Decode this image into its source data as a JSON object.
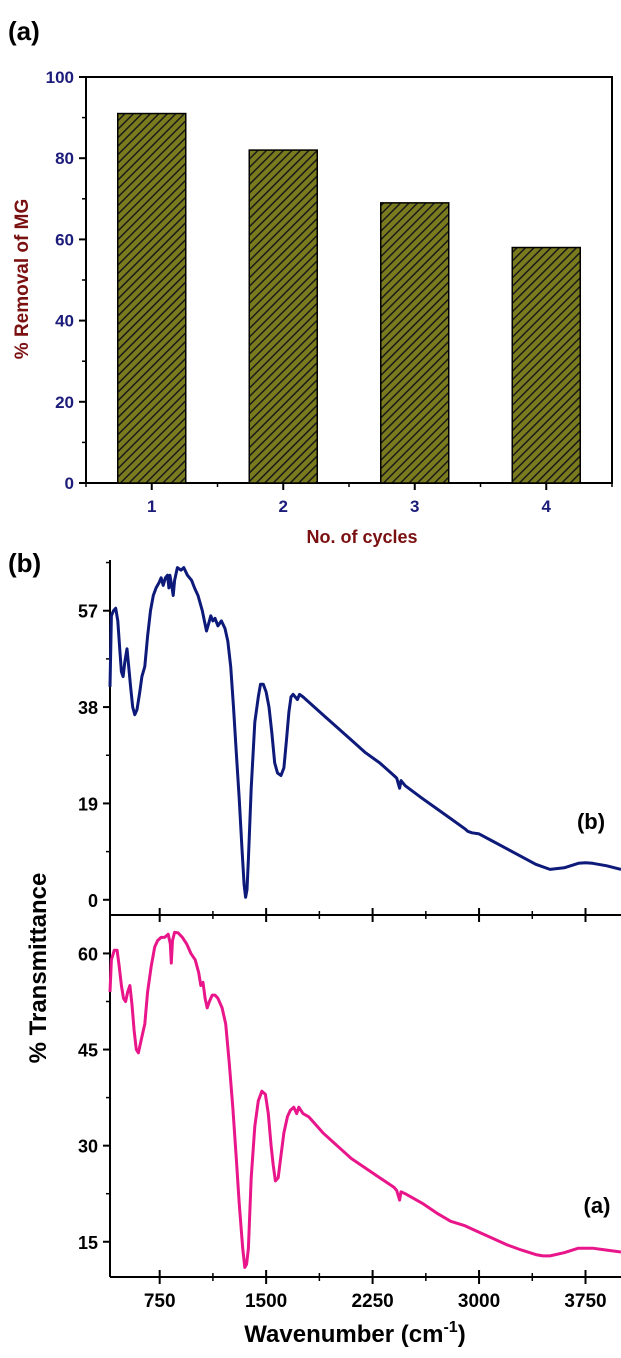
{
  "chart_data": [
    {
      "type": "bar",
      "panel_label": "(a)",
      "categories": [
        "1",
        "2",
        "3",
        "4"
      ],
      "values": [
        91,
        82,
        69,
        58
      ],
      "xlabel": "No. of cycles",
      "ylabel": "% Removal of MG",
      "ylim": [
        0,
        100
      ],
      "yticks": [
        "0",
        "20",
        "40",
        "60",
        "80",
        "100"
      ],
      "grid": false,
      "bar_fill": "hatched olive",
      "colors": {
        "bar": "#7a7a1e",
        "hatch": "#1a1a1a",
        "ytick": "#1c1c7a",
        "xtick": "#1c1c7a",
        "label": "#7a1010"
      }
    },
    {
      "type": "line",
      "panel_label": "(b)",
      "xlabel_main": "Wavenumber (cm",
      "xlabel_sup": "-1",
      "xlabel_close": ")",
      "ylabel": "% Transmittance",
      "xlim": [
        400,
        4000
      ],
      "xticks": [
        "750",
        "1500",
        "2250",
        "3000",
        "3750"
      ],
      "grid": false,
      "series": [
        {
          "name": "(b)",
          "color": "#0d1a7a",
          "ylim": [
            -3,
            67
          ],
          "yticks": [
            "0",
            "19",
            "38",
            "57"
          ],
          "points": [
            [
              400,
              42
            ],
            [
              410,
              56
            ],
            [
              425,
              57
            ],
            [
              440,
              57.5
            ],
            [
              455,
              55
            ],
            [
              470,
              49
            ],
            [
              480,
              45
            ],
            [
              492,
              44
            ],
            [
              505,
              47
            ],
            [
              520,
              49.5
            ],
            [
              532,
              46
            ],
            [
              545,
              42
            ],
            [
              560,
              38
            ],
            [
              575,
              36.5
            ],
            [
              590,
              37.5
            ],
            [
              610,
              41
            ],
            [
              625,
              44
            ],
            [
              645,
              46
            ],
            [
              665,
              52
            ],
            [
              685,
              57
            ],
            [
              705,
              60
            ],
            [
              725,
              61.5
            ],
            [
              745,
              62.5
            ],
            [
              760,
              63.5
            ],
            [
              775,
              62
            ],
            [
              790,
              63.5
            ],
            [
              805,
              64
            ],
            [
              815,
              61.5
            ],
            [
              822,
              64
            ],
            [
              835,
              62
            ],
            [
              845,
              60
            ],
            [
              855,
              63
            ],
            [
              875,
              65.5
            ],
            [
              900,
              65
            ],
            [
              920,
              65.5
            ],
            [
              945,
              64
            ],
            [
              975,
              63
            ],
            [
              995,
              61.5
            ],
            [
              1020,
              60
            ],
            [
              1050,
              57
            ],
            [
              1065,
              55
            ],
            [
              1080,
              53
            ],
            [
              1095,
              54.5
            ],
            [
              1110,
              56
            ],
            [
              1125,
              55
            ],
            [
              1140,
              55.5
            ],
            [
              1160,
              54
            ],
            [
              1185,
              55
            ],
            [
              1210,
              53.5
            ],
            [
              1230,
              51
            ],
            [
              1250,
              46
            ],
            [
              1270,
              38
            ],
            [
              1290,
              29
            ],
            [
              1310,
              20
            ],
            [
              1330,
              10
            ],
            [
              1345,
              3
            ],
            [
              1355,
              0.5
            ],
            [
              1365,
              2
            ],
            [
              1375,
              8
            ],
            [
              1395,
              22
            ],
            [
              1420,
              35
            ],
            [
              1445,
              40
            ],
            [
              1460,
              42.5
            ],
            [
              1480,
              42.5
            ],
            [
              1500,
              41
            ],
            [
              1520,
              38
            ],
            [
              1540,
              33
            ],
            [
              1560,
              27
            ],
            [
              1580,
              25
            ],
            [
              1605,
              24.5
            ],
            [
              1625,
              26
            ],
            [
              1645,
              32
            ],
            [
              1660,
              37
            ],
            [
              1675,
              40
            ],
            [
              1690,
              40.5
            ],
            [
              1705,
              40
            ],
            [
              1720,
              39.5
            ],
            [
              1735,
              40.5
            ],
            [
              1760,
              40
            ],
            [
              1800,
              39
            ],
            [
              1900,
              36.5
            ],
            [
              2000,
              34
            ],
            [
              2100,
              31.5
            ],
            [
              2200,
              29
            ],
            [
              2300,
              27
            ],
            [
              2400,
              24.5
            ],
            [
              2420,
              24
            ],
            [
              2440,
              22
            ],
            [
              2450,
              23.5
            ],
            [
              2480,
              22.5
            ],
            [
              2600,
              20
            ],
            [
              2700,
              18
            ],
            [
              2800,
              16
            ],
            [
              2900,
              14
            ],
            [
              2920,
              13.5
            ],
            [
              2950,
              13.2
            ],
            [
              3000,
              13
            ],
            [
              3100,
              11.5
            ],
            [
              3200,
              10
            ],
            [
              3300,
              8.5
            ],
            [
              3400,
              7
            ],
            [
              3500,
              6
            ],
            [
              3600,
              6.3
            ],
            [
              3700,
              7.2
            ],
            [
              3750,
              7.3
            ],
            [
              3800,
              7.2
            ],
            [
              3900,
              6.7
            ],
            [
              4000,
              6
            ]
          ]
        },
        {
          "name": "(a)",
          "color": "#e8168a",
          "ylim": [
            9.5,
            66
          ],
          "yticks": [
            "15",
            "30",
            "45",
            "60"
          ],
          "points": [
            [
              400,
              54
            ],
            [
              410,
              59
            ],
            [
              430,
              60.5
            ],
            [
              450,
              60.5
            ],
            [
              465,
              58
            ],
            [
              480,
              55
            ],
            [
              495,
              53
            ],
            [
              510,
              52.5
            ],
            [
              525,
              54
            ],
            [
              540,
              55
            ],
            [
              555,
              52
            ],
            [
              570,
              48
            ],
            [
              585,
              45
            ],
            [
              600,
              44.5
            ],
            [
              620,
              46.5
            ],
            [
              645,
              49
            ],
            [
              665,
              54
            ],
            [
              690,
              58
            ],
            [
              715,
              61
            ],
            [
              735,
              62
            ],
            [
              760,
              62.5
            ],
            [
              785,
              62.5
            ],
            [
              810,
              63
            ],
            [
              825,
              61.5
            ],
            [
              832,
              58.5
            ],
            [
              840,
              62
            ],
            [
              855,
              63.3
            ],
            [
              880,
              63.2
            ],
            [
              910,
              62.5
            ],
            [
              940,
              61.5
            ],
            [
              970,
              60
            ],
            [
              1000,
              59
            ],
            [
              1025,
              57
            ],
            [
              1040,
              55
            ],
            [
              1055,
              55.5
            ],
            [
              1070,
              53
            ],
            [
              1085,
              51.5
            ],
            [
              1100,
              52.5
            ],
            [
              1120,
              53.5
            ],
            [
              1140,
              53.5
            ],
            [
              1160,
              53
            ],
            [
              1190,
              51.5
            ],
            [
              1215,
              49
            ],
            [
              1240,
              43
            ],
            [
              1265,
              36
            ],
            [
              1290,
              28
            ],
            [
              1310,
              21
            ],
            [
              1335,
              14
            ],
            [
              1350,
              11
            ],
            [
              1362,
              11.5
            ],
            [
              1375,
              14
            ],
            [
              1395,
              25
            ],
            [
              1420,
              33
            ],
            [
              1445,
              37
            ],
            [
              1470,
              38.5
            ],
            [
              1495,
              38
            ],
            [
              1515,
              35
            ],
            [
              1535,
              30
            ],
            [
              1550,
              27
            ],
            [
              1565,
              24.5
            ],
            [
              1585,
              25
            ],
            [
              1605,
              28.5
            ],
            [
              1625,
              32
            ],
            [
              1650,
              34.5
            ],
            [
              1670,
              35.5
            ],
            [
              1695,
              36
            ],
            [
              1715,
              35
            ],
            [
              1730,
              36
            ],
            [
              1760,
              35
            ],
            [
              1800,
              34.5
            ],
            [
              1900,
              32
            ],
            [
              2000,
              30
            ],
            [
              2100,
              28
            ],
            [
              2200,
              26.5
            ],
            [
              2300,
              25
            ],
            [
              2400,
              23.5
            ],
            [
              2420,
              23
            ],
            [
              2440,
              21.5
            ],
            [
              2450,
              22.8
            ],
            [
              2480,
              22.5
            ],
            [
              2600,
              21
            ],
            [
              2700,
              19.5
            ],
            [
              2800,
              18.2
            ],
            [
              2900,
              17.5
            ],
            [
              3000,
              16.5
            ],
            [
              3100,
              15.5
            ],
            [
              3200,
              14.5
            ],
            [
              3300,
              13.7
            ],
            [
              3400,
              13
            ],
            [
              3450,
              12.8
            ],
            [
              3500,
              12.8
            ],
            [
              3600,
              13.3
            ],
            [
              3700,
              14
            ],
            [
              3800,
              14
            ],
            [
              3900,
              13.7
            ],
            [
              4000,
              13.4
            ]
          ]
        }
      ]
    }
  ]
}
